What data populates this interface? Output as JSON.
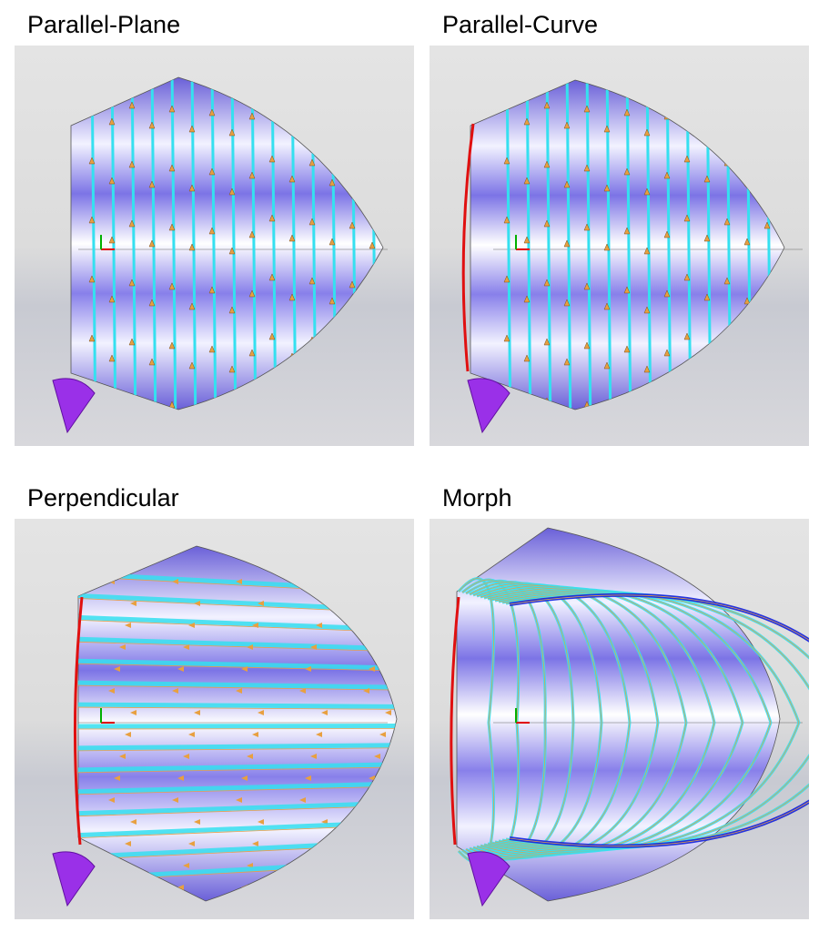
{
  "panels": [
    {
      "title": "Parallel-Plane"
    },
    {
      "title": "Parallel-Curve"
    },
    {
      "title": "Perpendicular"
    },
    {
      "title": "Morph"
    }
  ]
}
